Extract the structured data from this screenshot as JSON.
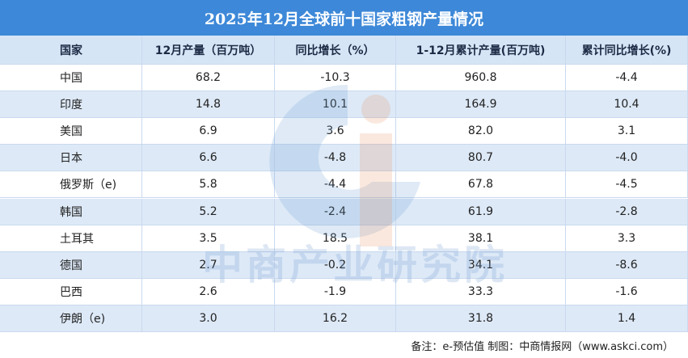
{
  "title": "2025年12月全球前十国家粗钢产量情况",
  "table": {
    "headers": [
      "国家",
      "12月产量（百万吨）",
      "同比增长（%）",
      "1-12月累计产量(百万吨)",
      "累计同比增长(%)"
    ],
    "rows": [
      [
        "中国",
        "68.2",
        "-10.3",
        "960.8",
        "-4.4"
      ],
      [
        "印度",
        "14.8",
        "10.1",
        "164.9",
        "10.4"
      ],
      [
        "美国",
        "6.9",
        "3.6",
        "82.0",
        "3.1"
      ],
      [
        "日本",
        "6.6",
        "-4.8",
        "80.7",
        "-4.0"
      ],
      [
        "俄罗斯（e)",
        "5.8",
        "-4.4",
        "67.8",
        "-4.5"
      ],
      [
        "韩国",
        "5.2",
        "-2.4",
        "61.9",
        "-2.8"
      ],
      [
        "土耳其",
        "3.5",
        "18.5",
        "38.1",
        "3.3"
      ],
      [
        "德国",
        "2.7",
        "-0.2",
        "34.1",
        "-8.6"
      ],
      [
        "巴西",
        "2.6",
        "-1.9",
        "33.3",
        "-1.6"
      ],
      [
        "伊朗（e)",
        "3.0",
        "16.2",
        "31.8",
        "1.4"
      ]
    ]
  },
  "watermark": "中商产业研究院",
  "footer": "备注：e-预估值  制图：中商情报网（www.askci.com）"
}
